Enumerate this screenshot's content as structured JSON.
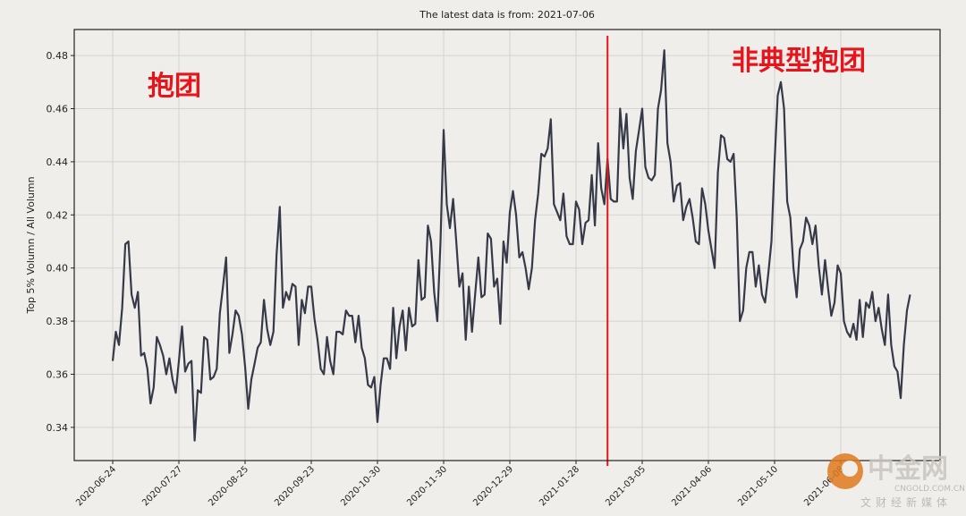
{
  "chart_data": {
    "type": "line",
    "title": "The latest data is from: 2021-07-06",
    "y_label": "Top 5% Volumn / All Volumn",
    "annotations": [
      {
        "text": "抱团",
        "color": "#e8141b"
      },
      {
        "text": "非典型抱团",
        "color": "#e8141b"
      }
    ],
    "vlines": [
      {
        "x": 157,
        "color": "#e8141b"
      }
    ],
    "watermark": {
      "name": "中金网",
      "site": "CNGOLD.COM.CN",
      "slogan": "文财经新媒体"
    },
    "series": [
      {
        "color": "#363a48",
        "values": [
          0.365,
          0.376,
          0.371,
          0.385,
          0.409,
          0.41,
          0.39,
          0.385,
          0.391,
          0.367,
          0.368,
          0.362,
          0.349,
          0.355,
          0.374,
          0.371,
          0.367,
          0.36,
          0.366,
          0.358,
          0.353,
          0.365,
          0.378,
          0.361,
          0.364,
          0.365,
          0.335,
          0.354,
          0.353,
          0.374,
          0.373,
          0.358,
          0.359,
          0.362,
          0.383,
          0.393,
          0.404,
          0.368,
          0.375,
          0.384,
          0.382,
          0.375,
          0.363,
          0.347,
          0.358,
          0.364,
          0.37,
          0.372,
          0.388,
          0.377,
          0.371,
          0.376,
          0.405,
          0.423,
          0.385,
          0.391,
          0.388,
          0.394,
          0.393,
          0.371,
          0.388,
          0.383,
          0.393,
          0.393,
          0.381,
          0.373,
          0.362,
          0.36,
          0.374,
          0.365,
          0.36,
          0.376,
          0.376,
          0.375,
          0.384,
          0.382,
          0.382,
          0.372,
          0.382,
          0.37,
          0.366,
          0.356,
          0.355,
          0.359,
          0.342,
          0.356,
          0.366,
          0.366,
          0.362,
          0.385,
          0.366,
          0.378,
          0.384,
          0.369,
          0.385,
          0.378,
          0.379,
          0.403,
          0.388,
          0.389,
          0.416,
          0.41,
          0.391,
          0.38,
          0.41,
          0.452,
          0.424,
          0.415,
          0.426,
          0.41,
          0.393,
          0.398,
          0.373,
          0.393,
          0.376,
          0.39,
          0.404,
          0.389,
          0.39,
          0.413,
          0.411,
          0.393,
          0.396,
          0.379,
          0.41,
          0.402,
          0.421,
          0.429,
          0.42,
          0.404,
          0.406,
          0.4,
          0.392,
          0.4,
          0.418,
          0.428,
          0.443,
          0.442,
          0.445,
          0.456,
          0.424,
          0.421,
          0.418,
          0.428,
          0.412,
          0.409,
          0.409,
          0.425,
          0.422,
          0.409,
          0.417,
          0.418,
          0.435,
          0.416,
          0.447,
          0.43,
          0.424,
          0.441,
          0.426,
          0.425,
          0.425,
          0.46,
          0.445,
          0.458,
          0.434,
          0.426,
          0.444,
          0.452,
          0.46,
          0.438,
          0.434,
          0.433,
          0.435,
          0.46,
          0.467,
          0.482,
          0.447,
          0.44,
          0.425,
          0.431,
          0.432,
          0.418,
          0.423,
          0.426,
          0.419,
          0.41,
          0.409,
          0.43,
          0.424,
          0.414,
          0.407,
          0.4,
          0.436,
          0.45,
          0.449,
          0.441,
          0.44,
          0.443,
          0.419,
          0.38,
          0.384,
          0.4,
          0.406,
          0.406,
          0.393,
          0.401,
          0.39,
          0.387,
          0.398,
          0.41,
          0.44,
          0.465,
          0.47,
          0.46,
          0.425,
          0.419,
          0.4,
          0.389,
          0.407,
          0.41,
          0.419,
          0.416,
          0.409,
          0.416,
          0.401,
          0.39,
          0.403,
          0.392,
          0.382,
          0.387,
          0.401,
          0.398,
          0.38,
          0.376,
          0.374,
          0.379,
          0.373,
          0.388,
          0.374,
          0.387,
          0.385,
          0.391,
          0.38,
          0.385,
          0.377,
          0.371,
          0.39,
          0.371,
          0.363,
          0.361,
          0.351,
          0.371,
          0.384,
          0.39
        ]
      }
    ],
    "xlim": [
      -12.2,
      262.5
    ],
    "xticks": [
      {
        "value": 0,
        "label": "2020-06-24"
      },
      {
        "value": 21,
        "label": "2020-07-27"
      },
      {
        "value": 42,
        "label": "2020-08-25"
      },
      {
        "value": 63,
        "label": "2020-09-23"
      },
      {
        "value": 84,
        "label": "2020-10-30"
      },
      {
        "value": 105,
        "label": "2020-11-30"
      },
      {
        "value": 126,
        "label": "2020-12-29"
      },
      {
        "value": 147,
        "label": "2021-01-28"
      },
      {
        "value": 168,
        "label": "2021-03-05"
      },
      {
        "value": 189,
        "label": "2021-04-06"
      },
      {
        "value": 210,
        "label": "2021-05-10"
      },
      {
        "value": 231,
        "label": "2021-06-08"
      }
    ],
    "ylim": [
      0.3275,
      0.4898
    ],
    "yticks": [
      0.34,
      0.36,
      0.38,
      {
        "value": 0.4,
        "label": "0.40"
      },
      0.42,
      0.44,
      0.46,
      0.48
    ],
    "grid": true
  }
}
